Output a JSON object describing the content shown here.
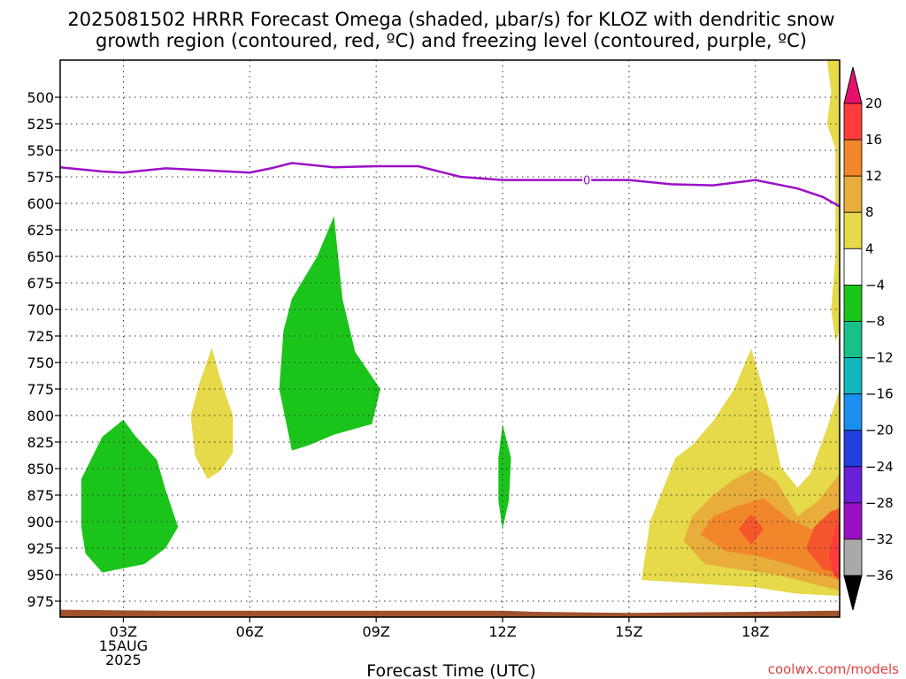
{
  "title_line1": "2025081502 HRRR Forecast Omega (shaded, μbar/s) for KLOZ with dendritic snow",
  "title_line2": "growth region (contoured, red, ºC) and freezing level (contoured, purple, ºC)",
  "credit": "coolwx.com/models",
  "chart_data": {
    "type": "contour",
    "title": "2025081502 HRRR Forecast Omega (shaded, μbar/s) for KLOZ with dendritic snow growth region (contoured, red, ºC) and freezing level (contoured, purple, ºC)",
    "xlabel": "Forecast Time (UTC)",
    "ylabel": "",
    "x_unit": "hour UTC",
    "xlim": [
      1.5,
      20.0
    ],
    "ylim": [
      990,
      465
    ],
    "y_scale": "linear, inverted (pressure, hPa)",
    "grid": true,
    "x_ticks": [
      {
        "hour": 3,
        "label": "03Z"
      },
      {
        "hour": 6,
        "label": "06Z"
      },
      {
        "hour": 9,
        "label": "09Z"
      },
      {
        "hour": 12,
        "label": "12Z"
      },
      {
        "hour": 15,
        "label": "15Z"
      },
      {
        "hour": 18,
        "label": "18Z"
      }
    ],
    "x_date_label": [
      "15AUG",
      "2025"
    ],
    "y_ticks": [
      500,
      525,
      550,
      575,
      600,
      625,
      650,
      675,
      700,
      725,
      750,
      775,
      800,
      825,
      850,
      875,
      900,
      925,
      950,
      975
    ],
    "colorbar": {
      "levels": [
        20,
        16,
        12,
        8,
        4,
        -4,
        -8,
        -12,
        -16,
        -20,
        -24,
        -28,
        -32,
        -36
      ],
      "colors": [
        "#ff3b3b",
        "#f2862a",
        "#e8ad3a",
        "#e6d94a",
        "#ffffff",
        "#1bc41b",
        "#18c08a",
        "#12b7be",
        "#1a8ff0",
        "#2240e0",
        "#6a1fd8",
        "#9a0fc4",
        "#a9a9a9"
      ],
      "max_extend_color": "#e8106e",
      "min_extend_color": "#000000"
    },
    "freezing_level": {
      "color": "#9a10c8",
      "label": "0",
      "label_x": 14.0,
      "points": [
        [
          1.5,
          566
        ],
        [
          2.5,
          570
        ],
        [
          3,
          571
        ],
        [
          4,
          567
        ],
        [
          5,
          569
        ],
        [
          6,
          571
        ],
        [
          6.5,
          567
        ],
        [
          7,
          562
        ],
        [
          8,
          566
        ],
        [
          9,
          565
        ],
        [
          10,
          565
        ],
        [
          11,
          575
        ],
        [
          12,
          578
        ],
        [
          13,
          578
        ],
        [
          14,
          578
        ],
        [
          15,
          578
        ],
        [
          16,
          582
        ],
        [
          17,
          583
        ],
        [
          18,
          578
        ],
        [
          19,
          586
        ],
        [
          19.6,
          594
        ],
        [
          20,
          603
        ]
      ]
    },
    "omega_regions": [
      {
        "value_band": "-8 to -4",
        "color": "#1bc41b",
        "points": [
          [
            3.0,
            804
          ],
          [
            2.5,
            820
          ],
          [
            2.0,
            860
          ],
          [
            2.0,
            905
          ],
          [
            2.1,
            930
          ],
          [
            2.5,
            948
          ],
          [
            3.5,
            940
          ],
          [
            4.0,
            925
          ],
          [
            4.3,
            905
          ],
          [
            4.0,
            870
          ],
          [
            3.8,
            842
          ],
          [
            3.3,
            820
          ]
        ]
      },
      {
        "value_band": "-8 to -4",
        "color": "#1bc41b",
        "points": [
          [
            8.0,
            612
          ],
          [
            7.6,
            650
          ],
          [
            7.0,
            690
          ],
          [
            6.8,
            720
          ],
          [
            6.7,
            775
          ],
          [
            7.0,
            833
          ],
          [
            7.4,
            828
          ],
          [
            8.0,
            818
          ],
          [
            8.9,
            808
          ],
          [
            9.1,
            775
          ],
          [
            8.5,
            740
          ],
          [
            8.2,
            690
          ]
        ]
      },
      {
        "value_band": "-8 to -4",
        "color": "#1bc41b",
        "points": [
          [
            12.0,
            808
          ],
          [
            11.9,
            840
          ],
          [
            11.9,
            880
          ],
          [
            12.0,
            907
          ],
          [
            12.15,
            880
          ],
          [
            12.2,
            840
          ]
        ]
      },
      {
        "value_band": "4 to 8",
        "color": "#e6d94a",
        "points": [
          [
            5.1,
            736
          ],
          [
            4.8,
            770
          ],
          [
            4.6,
            800
          ],
          [
            4.7,
            838
          ],
          [
            5.0,
            860
          ],
          [
            5.3,
            852
          ],
          [
            5.6,
            835
          ],
          [
            5.6,
            800
          ],
          [
            5.3,
            765
          ]
        ]
      },
      {
        "value_band": "4 to 8",
        "color": "#e6d94a",
        "points": [
          [
            19.7,
            465
          ],
          [
            19.8,
            495
          ],
          [
            19.7,
            525
          ],
          [
            19.9,
            548
          ],
          [
            19.9,
            650
          ],
          [
            19.8,
            700
          ],
          [
            19.9,
            730
          ],
          [
            20.0,
            720
          ],
          [
            20.0,
            465
          ]
        ]
      },
      {
        "value_band": "4 to 8",
        "color": "#e6d94a",
        "points": [
          [
            15.3,
            955
          ],
          [
            15.5,
            900
          ],
          [
            15.8,
            870
          ],
          [
            16.1,
            840
          ],
          [
            16.5,
            828
          ],
          [
            17.0,
            805
          ],
          [
            17.5,
            775
          ],
          [
            17.9,
            737
          ],
          [
            18.3,
            790
          ],
          [
            18.6,
            848
          ],
          [
            19.0,
            868
          ],
          [
            19.3,
            855
          ],
          [
            19.7,
            812
          ],
          [
            20.0,
            775
          ],
          [
            20.0,
            970
          ],
          [
            19.0,
            968
          ],
          [
            18.0,
            962
          ],
          [
            16.5,
            958
          ]
        ]
      },
      {
        "value_band": "8 to 12",
        "color": "#e8ad3a",
        "points": [
          [
            16.3,
            918
          ],
          [
            16.5,
            895
          ],
          [
            17.0,
            875
          ],
          [
            17.5,
            860
          ],
          [
            18.0,
            850
          ],
          [
            18.5,
            862
          ],
          [
            19.0,
            895
          ],
          [
            19.5,
            880
          ],
          [
            20.0,
            855
          ],
          [
            20.0,
            965
          ],
          [
            19.3,
            958
          ],
          [
            18.5,
            950
          ],
          [
            17.6,
            945
          ],
          [
            16.8,
            940
          ]
        ]
      },
      {
        "value_band": "12 to 16",
        "color": "#f2862a",
        "points": [
          [
            16.7,
            912
          ],
          [
            17.0,
            895
          ],
          [
            17.6,
            885
          ],
          [
            18.2,
            878
          ],
          [
            18.8,
            898
          ],
          [
            19.4,
            908
          ],
          [
            20.0,
            885
          ],
          [
            20.0,
            955
          ],
          [
            19.4,
            948
          ],
          [
            18.8,
            940
          ],
          [
            18.0,
            932
          ],
          [
            17.3,
            928
          ]
        ]
      },
      {
        "value_band": "16 to 20",
        "color": "#f5562c",
        "points": [
          [
            17.6,
            907
          ],
          [
            17.9,
            893
          ],
          [
            18.2,
            907
          ],
          [
            17.9,
            922
          ]
        ]
      },
      {
        "value_band": "16 to 20",
        "color": "#f5562c",
        "points": [
          [
            19.2,
            925
          ],
          [
            19.4,
            905
          ],
          [
            19.8,
            890
          ],
          [
            20.0,
            888
          ],
          [
            20.0,
            948
          ],
          [
            19.6,
            945
          ]
        ]
      },
      {
        "value_band": "20+",
        "color": "#ff3b3b",
        "points": [
          [
            19.75,
            932
          ],
          [
            19.9,
            905
          ],
          [
            20.0,
            900
          ],
          [
            20.0,
            955
          ],
          [
            19.85,
            950
          ]
        ]
      }
    ],
    "surface_terrain": {
      "color": "#a0522d",
      "points": [
        [
          1.5,
          983
        ],
        [
          4,
          984
        ],
        [
          6,
          984
        ],
        [
          8,
          984
        ],
        [
          10,
          984
        ],
        [
          12,
          984
        ],
        [
          12.8,
          985
        ],
        [
          15,
          986
        ],
        [
          18,
          985
        ],
        [
          19.8,
          984
        ],
        [
          20,
          984
        ]
      ]
    }
  }
}
